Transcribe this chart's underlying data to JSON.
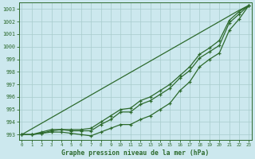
{
  "xlabel": "Graphe pression niveau de la mer (hPa)",
  "background_color": "#cce8ee",
  "grid_color": "#a8cccc",
  "line_color": "#2d6a2d",
  "xlim_min": -0.3,
  "xlim_max": 23.3,
  "ylim_min": 992.6,
  "ylim_max": 1003.5,
  "yticks": [
    993,
    994,
    995,
    996,
    997,
    998,
    999,
    1000,
    1001,
    1002,
    1003
  ],
  "xticks": [
    0,
    1,
    2,
    3,
    4,
    5,
    6,
    7,
    8,
    9,
    10,
    11,
    12,
    13,
    14,
    15,
    16,
    17,
    18,
    19,
    20,
    21,
    22,
    23
  ],
  "hours": [
    0,
    1,
    2,
    3,
    4,
    5,
    6,
    7,
    8,
    9,
    10,
    11,
    12,
    13,
    14,
    15,
    16,
    17,
    18,
    19,
    20,
    21,
    22,
    23
  ],
  "line_straight": [
    993.0,
    993.45,
    993.9,
    994.35,
    994.8,
    995.25,
    995.7,
    996.15,
    996.6,
    997.05,
    997.5,
    997.95,
    998.4,
    998.85,
    999.3,
    999.75,
    1000.2,
    1000.65,
    1001.1,
    1001.55,
    1002.0,
    1002.45,
    1002.9,
    1003.3
  ],
  "line_upper_marked": [
    993.0,
    993.0,
    993.1,
    993.3,
    993.4,
    993.4,
    993.4,
    993.5,
    994.0,
    994.5,
    995.0,
    995.1,
    995.7,
    996.0,
    996.5,
    997.0,
    997.7,
    998.4,
    999.4,
    999.9,
    1000.5,
    1002.1,
    1002.8,
    1003.3
  ],
  "line_lower_marked": [
    993.0,
    993.0,
    993.1,
    993.2,
    993.2,
    993.1,
    993.0,
    992.9,
    993.2,
    993.5,
    993.8,
    993.8,
    994.2,
    994.5,
    995.0,
    995.5,
    996.5,
    997.2,
    998.4,
    999.0,
    999.5,
    1001.3,
    1002.2,
    1003.3
  ],
  "line_mid_marked": [
    993.0,
    993.0,
    993.2,
    993.4,
    993.4,
    993.3,
    993.3,
    993.3,
    993.8,
    994.2,
    994.8,
    994.8,
    995.4,
    995.7,
    996.2,
    996.7,
    997.5,
    998.1,
    999.1,
    999.6,
    1000.1,
    1001.9,
    1002.6,
    1003.3
  ]
}
